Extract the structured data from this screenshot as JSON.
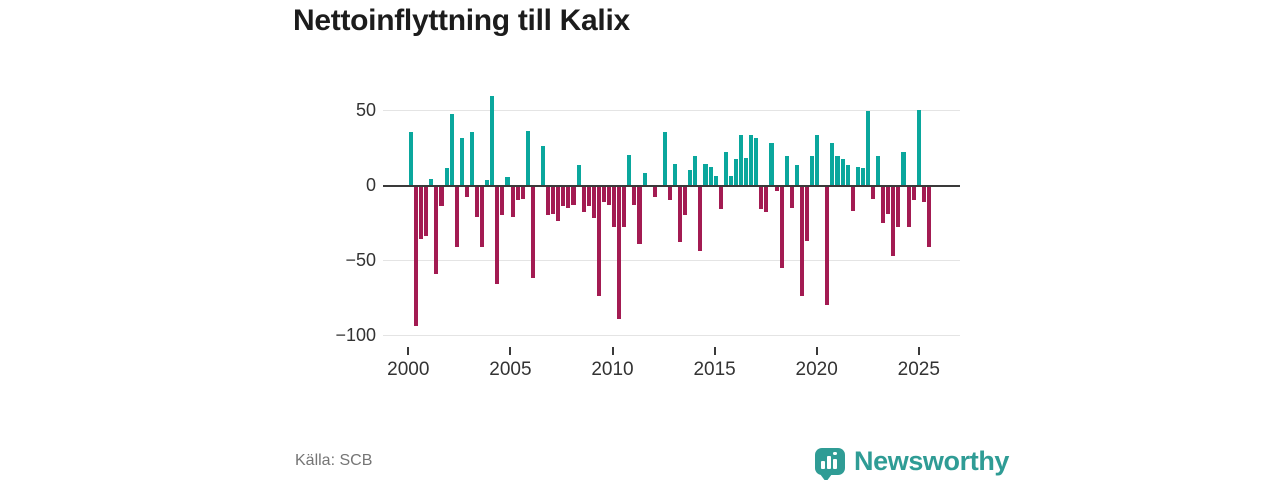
{
  "title": "Nettoinflyttning till Kalix",
  "source": "Källa: SCB",
  "branding": {
    "name": "Newsworthy",
    "logo_icon": "speech-bubble-bar-chart"
  },
  "colors": {
    "positive": "#0aa79d",
    "negative": "#a31b52",
    "axis_line": "#3a3a3a",
    "gridline": "#e4e4e4",
    "title_text": "#1c1c1c",
    "axis_text": "#333333",
    "source_text": "#757575",
    "brand": "#2f9c95"
  },
  "chart_data": {
    "type": "bar",
    "title": "Nettoinflyttning till Kalix",
    "xlabel": "",
    "ylabel": "",
    "periodicity": "quarterly",
    "ylim": [
      -100,
      60
    ],
    "grid": true,
    "legend": "none",
    "y_ticks": [
      {
        "value": 50,
        "label": "50"
      },
      {
        "value": 0,
        "label": "0"
      },
      {
        "value": -50,
        "label": "−50"
      },
      {
        "value": -100,
        "label": "−100"
      }
    ],
    "x_ticks": [
      "2000",
      "2005",
      "2010",
      "2015",
      "2020",
      "2025"
    ],
    "x": [
      "2000Q1",
      "2000Q2",
      "2000Q3",
      "2000Q4",
      "2001Q1",
      "2001Q2",
      "2001Q3",
      "2001Q4",
      "2002Q1",
      "2002Q2",
      "2002Q3",
      "2002Q4",
      "2003Q1",
      "2003Q2",
      "2003Q3",
      "2003Q4",
      "2004Q1",
      "2004Q2",
      "2004Q3",
      "2004Q4",
      "2005Q1",
      "2005Q2",
      "2005Q3",
      "2005Q4",
      "2006Q1",
      "2006Q2",
      "2006Q3",
      "2006Q4",
      "2007Q1",
      "2007Q2",
      "2007Q3",
      "2007Q4",
      "2008Q1",
      "2008Q2",
      "2008Q3",
      "2008Q4",
      "2009Q1",
      "2009Q2",
      "2009Q3",
      "2009Q4",
      "2010Q1",
      "2010Q2",
      "2010Q3",
      "2010Q4",
      "2011Q1",
      "2011Q2",
      "2011Q3",
      "2011Q4",
      "2012Q1",
      "2012Q2",
      "2012Q3",
      "2012Q4",
      "2013Q1",
      "2013Q2",
      "2013Q3",
      "2013Q4",
      "2014Q1",
      "2014Q2",
      "2014Q3",
      "2014Q4",
      "2015Q1",
      "2015Q2",
      "2015Q3",
      "2015Q4",
      "2016Q1",
      "2016Q2",
      "2016Q3",
      "2016Q4",
      "2017Q1",
      "2017Q2",
      "2017Q3",
      "2017Q4",
      "2018Q1",
      "2018Q2",
      "2018Q3",
      "2018Q4",
      "2019Q1",
      "2019Q2",
      "2019Q3",
      "2019Q4",
      "2020Q1",
      "2020Q2",
      "2020Q3",
      "2020Q4",
      "2021Q1",
      "2021Q2",
      "2021Q3",
      "2021Q4",
      "2022Q1",
      "2022Q2",
      "2022Q3",
      "2022Q4",
      "2023Q1",
      "2023Q2",
      "2023Q3",
      "2023Q4",
      "2024Q1",
      "2024Q2",
      "2024Q3",
      "2024Q4",
      "2025Q1",
      "2025Q2",
      "2025Q3"
    ],
    "values": [
      35,
      -93,
      -35,
      -33,
      4,
      -58,
      -13,
      11,
      47,
      -40,
      31,
      -7,
      35,
      -20,
      -40,
      3,
      59,
      -65,
      -19,
      5,
      -20,
      -9,
      -8,
      36,
      -61,
      0,
      26,
      -19,
      -18,
      -23,
      -13,
      -14,
      -12,
      13,
      -17,
      -13,
      -21,
      -73,
      -10,
      -12,
      -27,
      -88,
      -27,
      20,
      -12,
      -38,
      8,
      0,
      -7,
      0,
      35,
      -9,
      14,
      -37,
      -19,
      10,
      19,
      -43,
      14,
      12,
      6,
      -15,
      22,
      6,
      17,
      33,
      18,
      33,
      31,
      -15,
      -17,
      28,
      -3,
      -54,
      19,
      -14,
      13,
      -73,
      -36,
      19,
      33,
      0,
      -79,
      28,
      19,
      17,
      13,
      -16,
      12,
      11,
      49,
      -8,
      19,
      -24,
      -18,
      -46,
      -27,
      22,
      -27,
      -9,
      50,
      -10,
      -40
    ]
  }
}
